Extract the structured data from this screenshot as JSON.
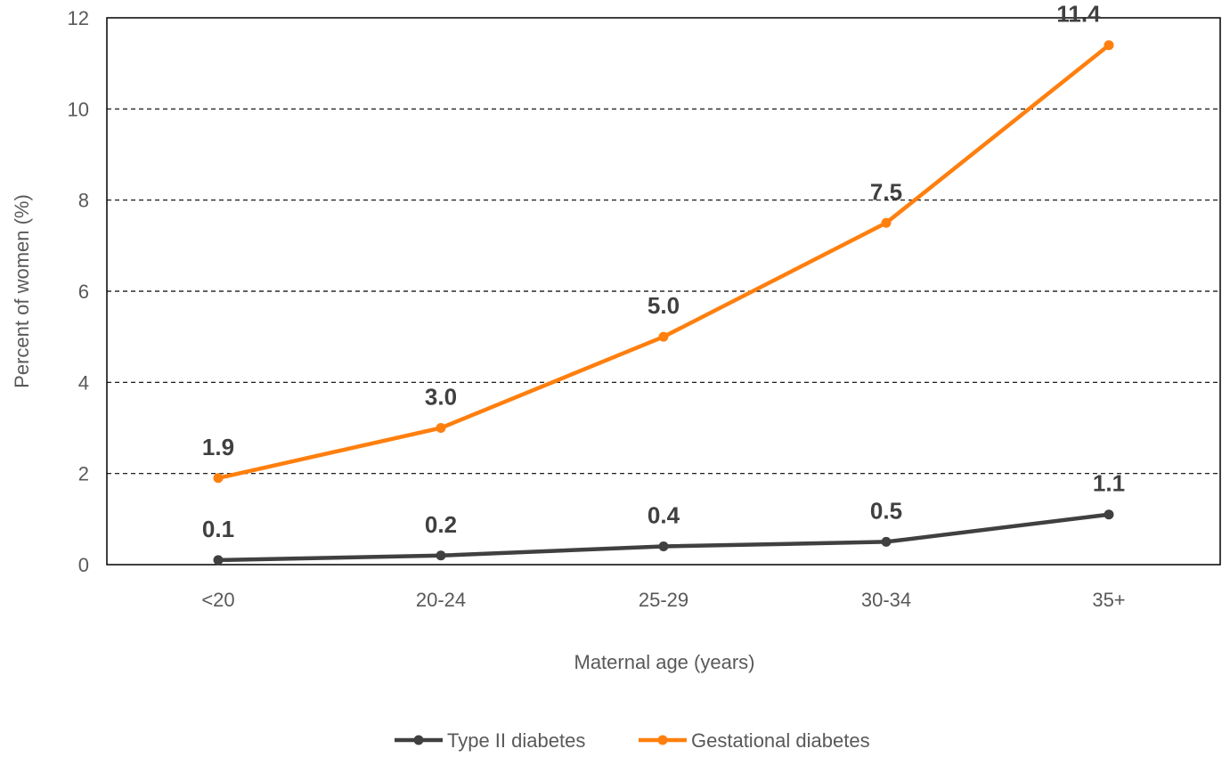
{
  "chart_data": {
    "type": "line",
    "title": "",
    "xlabel": "Maternal age (years)",
    "ylabel": "Percent of women (%)",
    "categories": [
      "<20",
      "20-24",
      "25-29",
      "30-34",
      "35+"
    ],
    "ylim": [
      0,
      12
    ],
    "yticks": [
      0,
      2,
      4,
      6,
      8,
      10,
      12
    ],
    "grid": "horizontal dashed",
    "legend_position": "bottom",
    "series": [
      {
        "name": "Type II diabetes",
        "color": "#404040",
        "values": [
          0.1,
          0.2,
          0.4,
          0.5,
          1.1
        ],
        "labels": [
          "0.1",
          "0.2",
          "0.4",
          "0.5",
          "1.1"
        ]
      },
      {
        "name": "Gestational diabetes",
        "color": "#FF7F0E",
        "values": [
          1.9,
          3.0,
          5.0,
          7.5,
          11.4
        ],
        "labels": [
          "1.9",
          "3.0",
          "5.0",
          "7.5",
          "11.4"
        ]
      }
    ]
  }
}
